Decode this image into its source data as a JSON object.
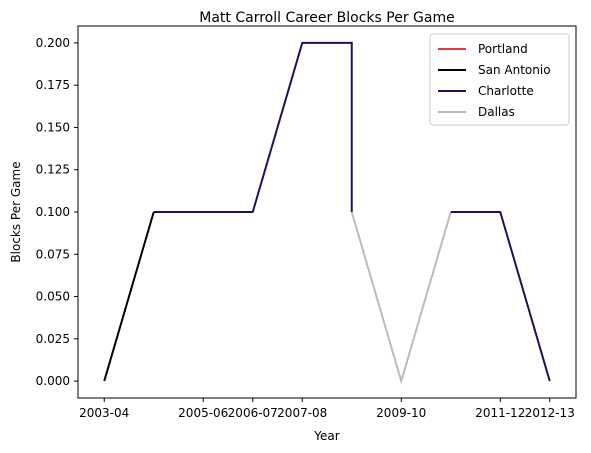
{
  "chart_data": {
    "type": "line",
    "title": "Matt Carroll  Career Blocks Per Game",
    "xlabel": "Year",
    "ylabel": "Blocks Per Game",
    "x_ticks": [
      "2003-04",
      "2005-06",
      "2006-07",
      "2007-08",
      "2009-10",
      "2011-12",
      "2012-13"
    ],
    "x_tick_positions": [
      0,
      2,
      3,
      4,
      6,
      8,
      9
    ],
    "xlim": [
      -0.53,
      9.53
    ],
    "y_ticks": [
      "0.000",
      "0.025",
      "0.050",
      "0.075",
      "0.100",
      "0.125",
      "0.150",
      "0.175",
      "0.200"
    ],
    "y_tick_values": [
      0,
      0.025,
      0.05,
      0.075,
      0.1,
      0.125,
      0.15,
      0.175,
      0.2
    ],
    "ylim": [
      -0.01,
      0.21
    ],
    "legend_position": "top-right",
    "series": [
      {
        "name": "Portland",
        "color": "#e03a3e",
        "points": [
          [
            0,
            0
          ],
          [
            0.5,
            0
          ]
        ]
      },
      {
        "name": "San Antonio",
        "color": "#000000",
        "points": [
          [
            0,
            0
          ],
          [
            1,
            0.1
          ]
        ]
      },
      {
        "name": "Charlotte",
        "color": "#1d1160",
        "points": [
          [
            1,
            0.1
          ],
          [
            2,
            0.1
          ],
          [
            3,
            0.1
          ],
          [
            4,
            0.2
          ],
          [
            5,
            0.2
          ],
          [
            5,
            0.1
          ]
        ]
      },
      {
        "name": "Dallas",
        "color": "#bbbbbb",
        "points": [
          [
            5,
            0.1
          ],
          [
            6,
            0
          ],
          [
            7,
            0.1
          ]
        ]
      },
      {
        "name": "Charlotte",
        "color": "#1d1160",
        "points": [
          [
            7,
            0.1
          ],
          [
            8,
            0.1
          ],
          [
            9,
            0
          ]
        ]
      }
    ],
    "legend": [
      {
        "name": "Portland",
        "color": "#e03a3e"
      },
      {
        "name": "San Antonio",
        "color": "#000000"
      },
      {
        "name": "Charlotte",
        "color": "#1d1160"
      },
      {
        "name": "Dallas",
        "color": "#bbbbbb"
      }
    ]
  }
}
